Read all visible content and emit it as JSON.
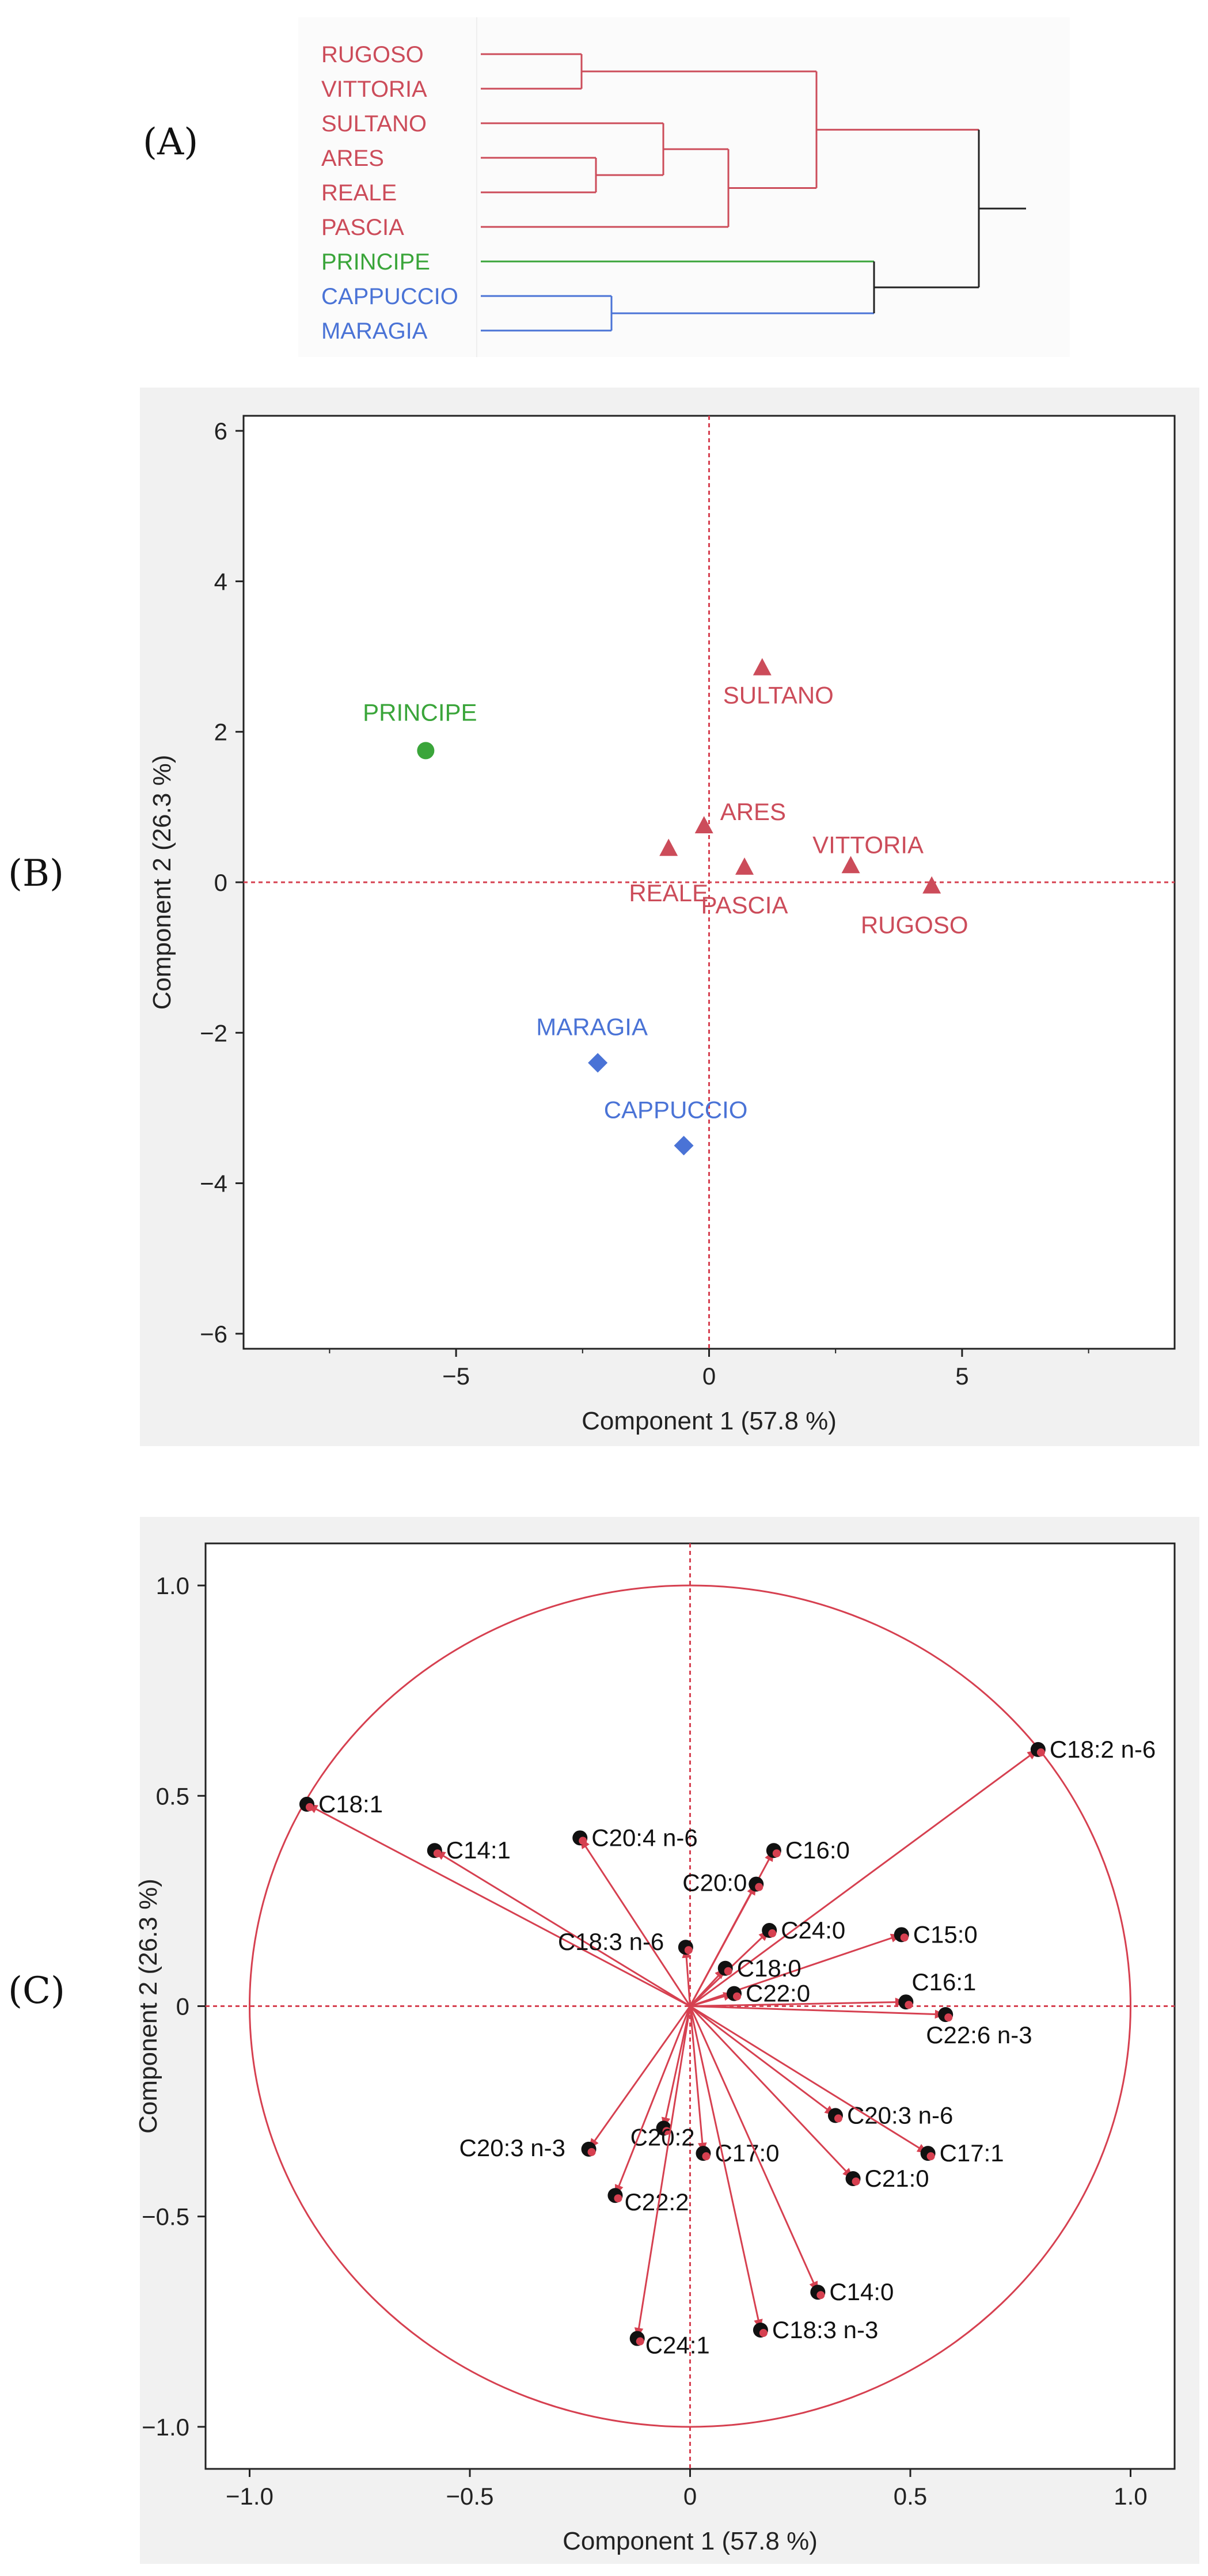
{
  "colors": {
    "red": "#cc4c5a",
    "green": "#3aa53a",
    "blue": "#4a73d6",
    "black": "#222222",
    "guide": "#d64050",
    "panel_bg": "#f1f1f1",
    "frame": "#222222"
  },
  "panels": {
    "a": "(A)",
    "b": "(B)",
    "c": "(C)"
  },
  "chart_data": [
    {
      "type": "dendrogram",
      "panel": "(A)",
      "leaves": [
        {
          "label": "RUGOSO",
          "group": "red"
        },
        {
          "label": "VITTORIA",
          "group": "red"
        },
        {
          "label": "SULTANO",
          "group": "red"
        },
        {
          "label": "ARES",
          "group": "red"
        },
        {
          "label": "REALE",
          "group": "red"
        },
        {
          "label": "PASCIA",
          "group": "red"
        },
        {
          "label": "PRINCIPE",
          "group": "green"
        },
        {
          "label": "CAPPUCCIO",
          "group": "blue"
        },
        {
          "label": "MARAGIA",
          "group": "blue"
        }
      ]
    },
    {
      "type": "scatter",
      "panel": "(B)",
      "title": "",
      "xlabel": "Component 1  (57.8 %)",
      "ylabel": "Component 2  (26.3 %)",
      "xlim": [
        -9.2,
        9.2
      ],
      "ylim": [
        -6.2,
        6.2
      ],
      "xticks": [
        -5,
        0,
        5
      ],
      "xtick_labels": [
        "−5",
        "0",
        "5"
      ],
      "yticks": [
        -6,
        -4,
        -2,
        0,
        2,
        4,
        6
      ],
      "ytick_labels": [
        "−6",
        "−4",
        "−2",
        "0",
        "2",
        "4",
        "6"
      ],
      "points": [
        {
          "label": "PRINCIPE",
          "x": -5.6,
          "y": 1.75,
          "group": "green",
          "marker": "circle"
        },
        {
          "label": "SULTANO",
          "x": 1.05,
          "y": 2.85,
          "group": "red",
          "marker": "triangle"
        },
        {
          "label": "ARES",
          "x": -0.1,
          "y": 0.75,
          "group": "red",
          "marker": "triangle"
        },
        {
          "label": "REALE",
          "x": -0.8,
          "y": 0.45,
          "group": "red",
          "marker": "triangle"
        },
        {
          "label": "PASCIA",
          "x": 0.7,
          "y": 0.2,
          "group": "red",
          "marker": "triangle"
        },
        {
          "label": "VITTORIA",
          "x": 2.8,
          "y": 0.22,
          "group": "red",
          "marker": "triangle"
        },
        {
          "label": "RUGOSO",
          "x": 4.4,
          "y": -0.05,
          "group": "red",
          "marker": "triangle"
        },
        {
          "label": "MARAGIA",
          "x": -2.2,
          "y": -2.4,
          "group": "blue",
          "marker": "diamond"
        },
        {
          "label": "CAPPUCCIO",
          "x": -0.5,
          "y": -3.5,
          "group": "blue",
          "marker": "diamond"
        }
      ]
    },
    {
      "type": "scatter",
      "subtype": "loading-plot",
      "panel": "(C)",
      "title": "",
      "xlabel": "Component 1  (57.8 %)",
      "ylabel": "Component 2  (26.3 %)",
      "xlim": [
        -1.1,
        1.1
      ],
      "ylim": [
        -1.1,
        1.1
      ],
      "xticks": [
        -1.0,
        -0.5,
        0,
        0.5,
        1.0
      ],
      "xtick_labels": [
        "−1.0",
        "−0.5",
        "0",
        "0.5",
        "1.0"
      ],
      "yticks": [
        -1.0,
        -0.5,
        0,
        0.5,
        1.0
      ],
      "ytick_labels": [
        "−1.0",
        "−0.5",
        "0",
        "0.5",
        "1.0"
      ],
      "unit_circle": true,
      "loadings": [
        {
          "label": "C18:2 n-6",
          "x": 0.79,
          "y": 0.61
        },
        {
          "label": "C18:1",
          "x": -0.87,
          "y": 0.48
        },
        {
          "label": "C14:1",
          "x": -0.58,
          "y": 0.37
        },
        {
          "label": "C20:4 n-6",
          "x": -0.25,
          "y": 0.4
        },
        {
          "label": "C16:0",
          "x": 0.19,
          "y": 0.37
        },
        {
          "label": "C20:0",
          "x": 0.15,
          "y": 0.29
        },
        {
          "label": "C24:0",
          "x": 0.18,
          "y": 0.18
        },
        {
          "label": "C18:3 n-6",
          "x": -0.01,
          "y": 0.14
        },
        {
          "label": "C15:0",
          "x": 0.48,
          "y": 0.17
        },
        {
          "label": "C18:0",
          "x": 0.08,
          "y": 0.09
        },
        {
          "label": "C22:0",
          "x": 0.1,
          "y": 0.03
        },
        {
          "label": "C16:1",
          "x": 0.49,
          "y": 0.01
        },
        {
          "label": "C22:6 n-3",
          "x": 0.58,
          "y": -0.02
        },
        {
          "label": "C20:3 n-6",
          "x": 0.33,
          "y": -0.26
        },
        {
          "label": "C17:1",
          "x": 0.54,
          "y": -0.35
        },
        {
          "label": "C21:0",
          "x": 0.37,
          "y": -0.41
        },
        {
          "label": "C20:3 n-3",
          "x": -0.23,
          "y": -0.34
        },
        {
          "label": "C20:2",
          "x": -0.06,
          "y": -0.29
        },
        {
          "label": "C17:0",
          "x": 0.03,
          "y": -0.35
        },
        {
          "label": "C22:2",
          "x": -0.17,
          "y": -0.45
        },
        {
          "label": "C14:0",
          "x": 0.29,
          "y": -0.68
        },
        {
          "label": "C18:3 n-3",
          "x": 0.16,
          "y": -0.77
        },
        {
          "label": "C24:1",
          "x": -0.12,
          "y": -0.79
        }
      ]
    }
  ]
}
